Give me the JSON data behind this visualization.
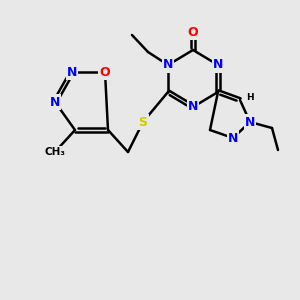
{
  "bg_color": "#e8e8e8",
  "bond_color": "#000000",
  "bond_width": 1.8,
  "atom_colors": {
    "N": "#0000ff",
    "O": "#ff0000",
    "S": "#cccc00",
    "C": "#000000"
  },
  "font_size": 9,
  "font_size_small": 7.5
}
